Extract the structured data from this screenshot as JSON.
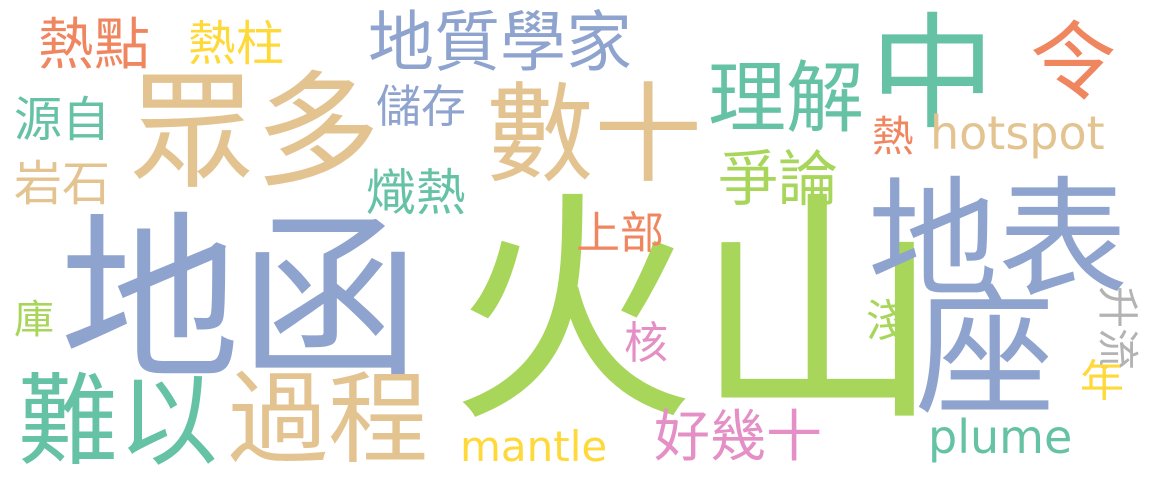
{
  "palette": {
    "blue": "#8fa3cf",
    "green": "#a8d65b",
    "tan": "#e3c491",
    "teal": "#66c2a5",
    "orange": "#f0865f",
    "yellow": "#ffd93a",
    "pink": "#e48fc6",
    "gray": "#b3b3b3",
    "background": "#ffffff"
  },
  "words": [
    {
      "text": "火山",
      "color": "green"
    },
    {
      "text": "地函",
      "color": "blue"
    },
    {
      "text": "地表",
      "color": "blue"
    },
    {
      "text": "數十",
      "color": "tan"
    },
    {
      "text": "眾多",
      "color": "tan"
    },
    {
      "text": "中",
      "color": "teal"
    },
    {
      "text": "座",
      "color": "blue"
    },
    {
      "text": "難以",
      "color": "teal"
    },
    {
      "text": "過程",
      "color": "tan"
    },
    {
      "text": "理解",
      "color": "teal"
    },
    {
      "text": "地質學家",
      "color": "blue"
    },
    {
      "text": "令",
      "color": "orange"
    },
    {
      "text": "熱點",
      "color": "orange"
    },
    {
      "text": "熱柱",
      "color": "yellow"
    },
    {
      "text": "源自",
      "color": "teal"
    },
    {
      "text": "岩石",
      "color": "tan"
    },
    {
      "text": "儲存",
      "color": "blue"
    },
    {
      "text": "熾熱",
      "color": "teal"
    },
    {
      "text": "爭論",
      "color": "green"
    },
    {
      "text": "hotspot",
      "color": "tan"
    },
    {
      "text": "熱",
      "color": "orange"
    },
    {
      "text": "上部",
      "color": "orange"
    },
    {
      "text": "庫",
      "color": "green"
    },
    {
      "text": "核",
      "color": "pink"
    },
    {
      "text": "淺",
      "color": "green"
    },
    {
      "text": "升流",
      "color": "gray"
    },
    {
      "text": "年",
      "color": "yellow"
    },
    {
      "text": "好幾十",
      "color": "pink"
    },
    {
      "text": "mantle",
      "color": "yellow"
    },
    {
      "text": "plume",
      "color": "teal"
    }
  ]
}
